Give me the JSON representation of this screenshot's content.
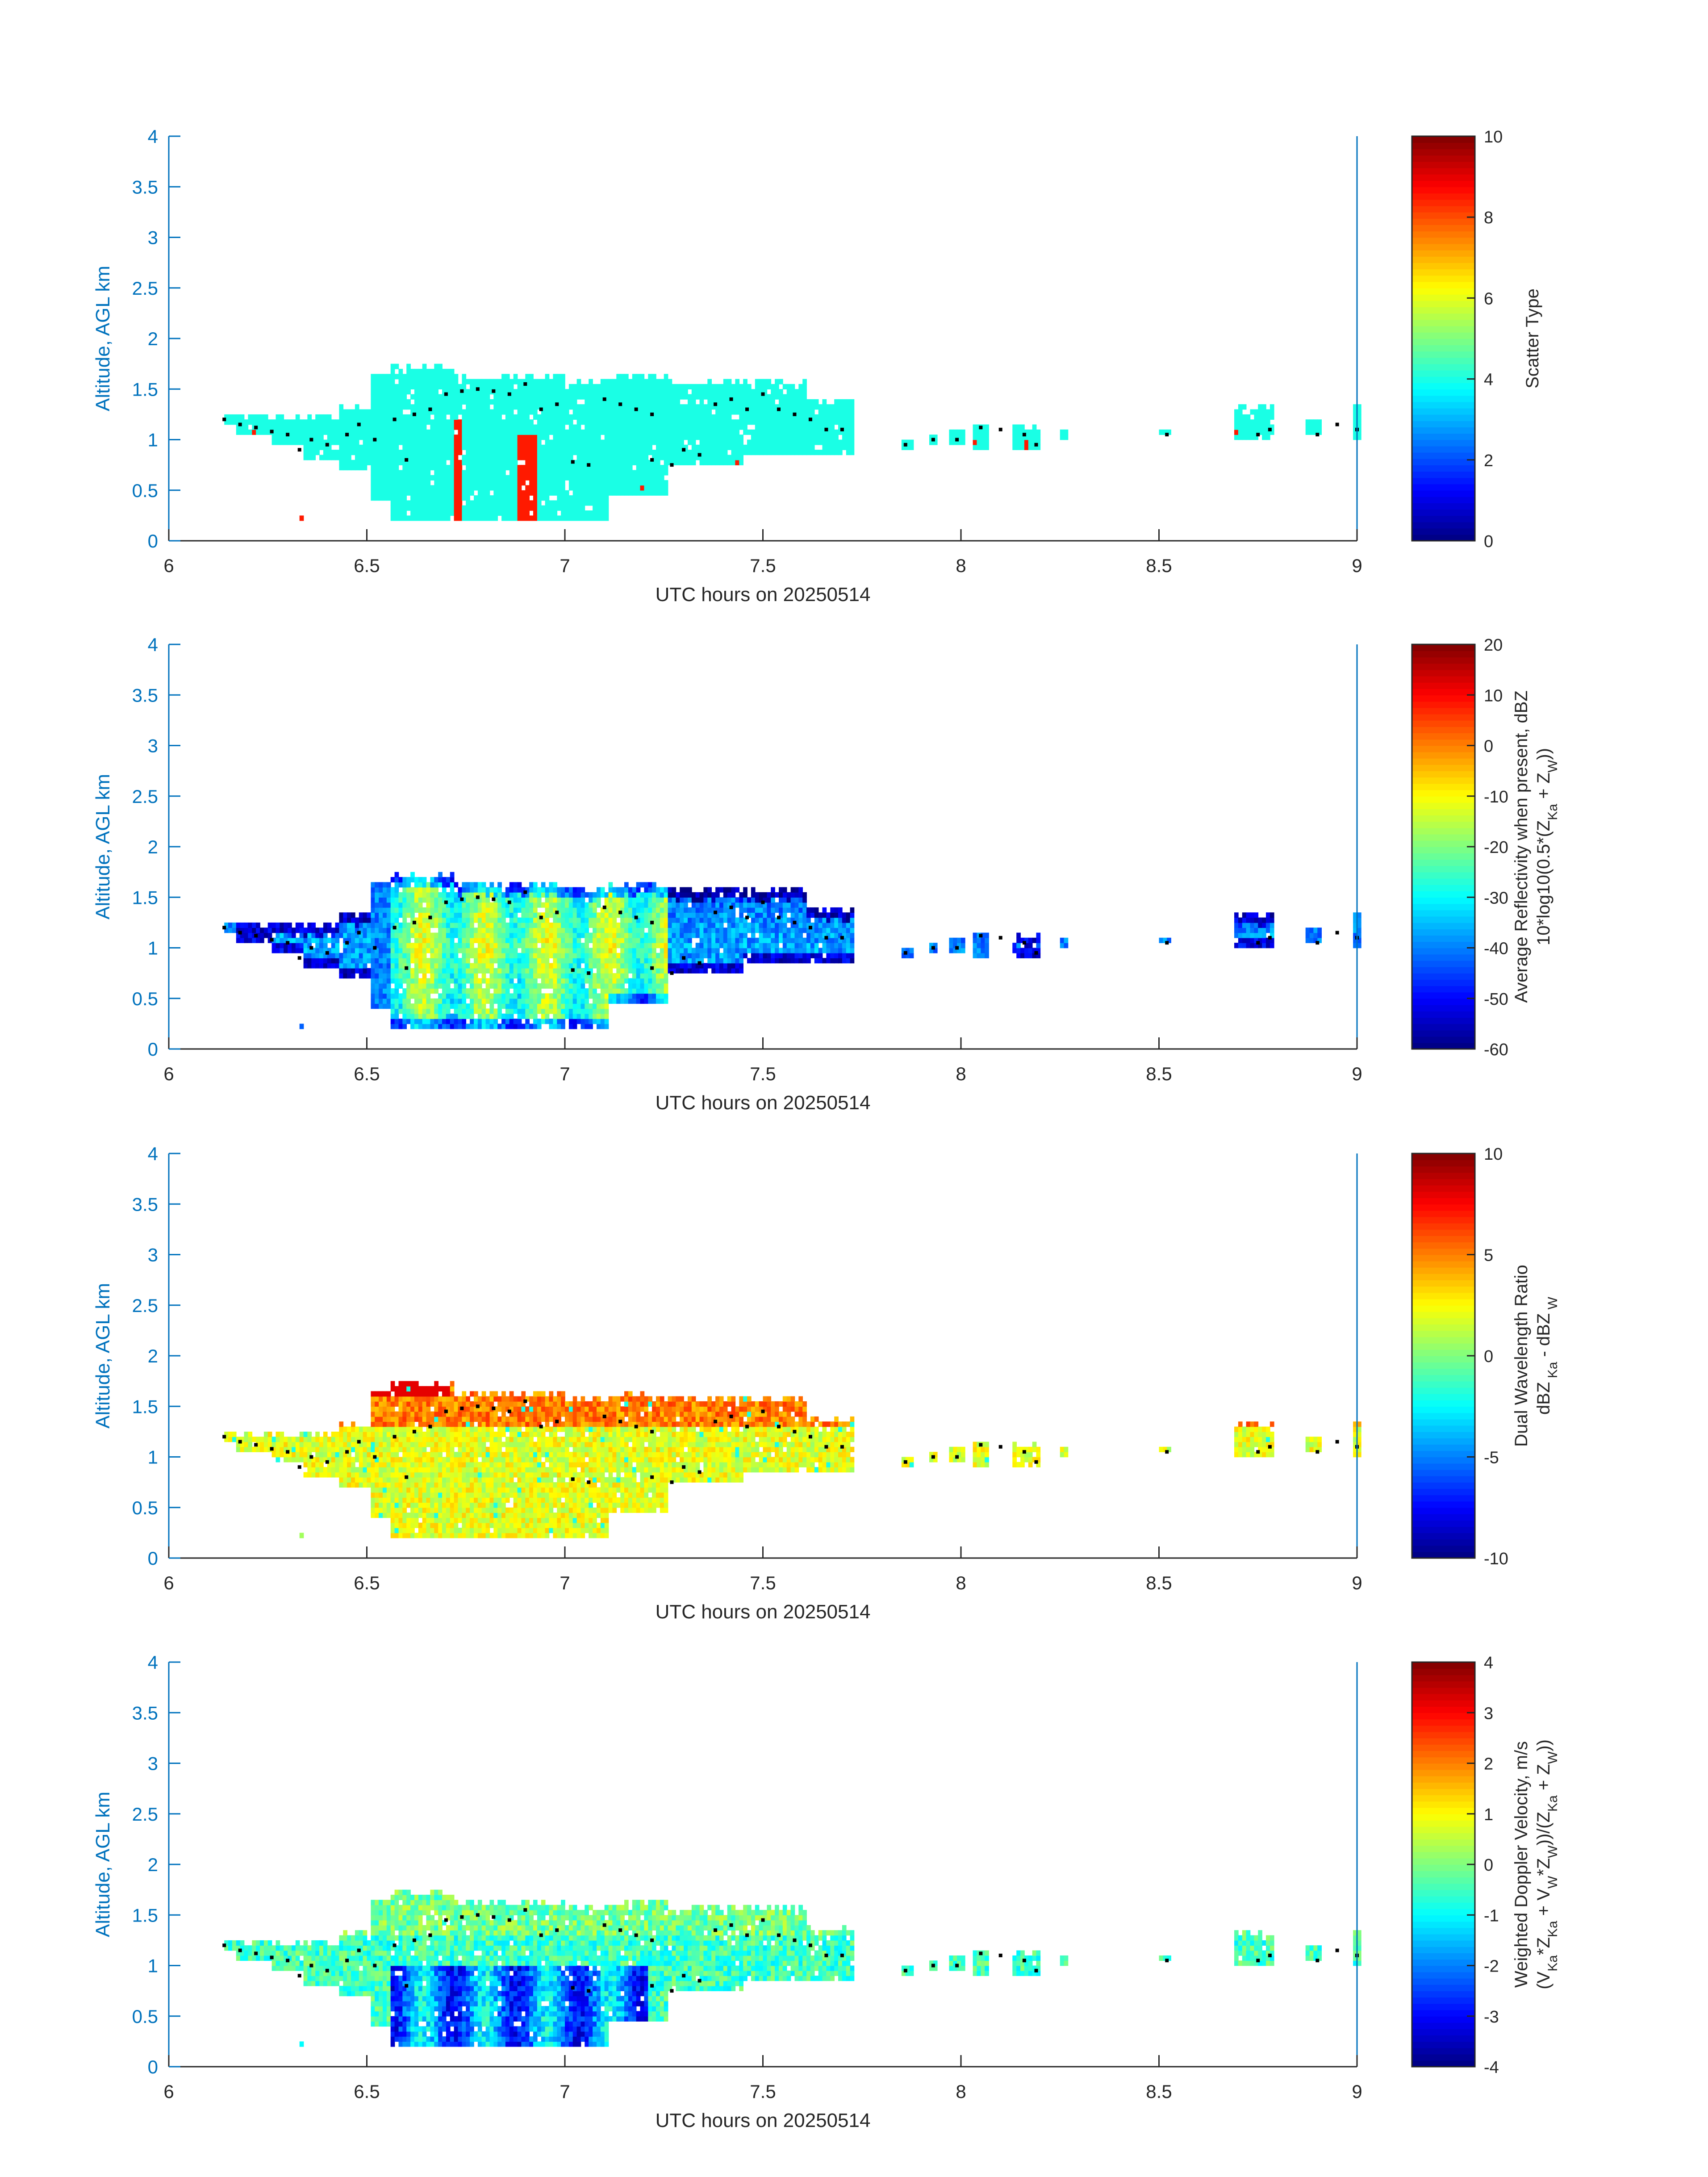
{
  "shared": {
    "xlabel": "UTC hours on 20250514",
    "ylabel": "Altitude, AGL km",
    "xlim": [
      6,
      9
    ],
    "ylim": [
      0,
      4
    ],
    "xticks": [
      "6",
      "6.5",
      "7",
      "7.5",
      "8",
      "8.5",
      "9"
    ],
    "yticks": [
      "0",
      "0.5",
      "1",
      "1.5",
      "2",
      "2.5",
      "3",
      "3.5",
      "4"
    ],
    "axis_color": "#0072BD",
    "colormap": "jet"
  },
  "chart_data": [
    {
      "type": "heatmap",
      "field": "scatter_type",
      "colorbar_label": [
        [
          {
            "t": "Scatter Type"
          }
        ]
      ],
      "clim": [
        0,
        10
      ],
      "cticks": [
        "0",
        "2",
        "4",
        "6",
        "8",
        "10"
      ],
      "base_value": 4,
      "spread": 0,
      "special": [
        {
          "t": [
            6.72,
            6.73
          ],
          "z": [
            0.2,
            1.2
          ],
          "value": 8.5
        },
        {
          "t": [
            6.88,
            6.92
          ],
          "z": [
            0.2,
            1.05
          ],
          "value": 8.5
        },
        {
          "t": [
            6.21,
            6.21
          ],
          "z": [
            1.05,
            1.1
          ],
          "value": 8.5
        },
        {
          "t": [
            6.33,
            6.33
          ],
          "z": [
            0.2,
            0.25
          ],
          "value": 8.5
        },
        {
          "t": [
            7.19,
            7.19
          ],
          "z": [
            0.5,
            0.55
          ],
          "value": 8.5
        },
        {
          "t": [
            7.43,
            7.43
          ],
          "z": [
            0.75,
            0.8
          ],
          "value": 8.5
        },
        {
          "t": [
            8.03,
            8.03
          ],
          "z": [
            0.95,
            1.0
          ],
          "value": 8.5
        },
        {
          "t": [
            8.16,
            8.16
          ],
          "z": [
            0.85,
            1.0
          ],
          "value": 8.5
        },
        {
          "t": [
            8.69,
            8.69
          ],
          "z": [
            1.05,
            1.1
          ],
          "value": 8.5
        }
      ]
    },
    {
      "type": "heatmap",
      "field": "average_reflectivity",
      "colorbar_label": [
        [
          {
            "t": "Average Reflectivity when present, dBZ"
          }
        ],
        [
          {
            "t": "10*log10(0.5*(Z"
          },
          {
            "t": "Ka",
            "sub": true
          },
          {
            "t": " + Z"
          },
          {
            "t": "W",
            "sub": true
          },
          {
            "t": "))"
          }
        ]
      ],
      "clim": [
        -60,
        20
      ],
      "cticks": [
        "-60",
        "-50",
        "-40",
        "-30",
        "-20",
        "-10",
        "0",
        "10",
        "20"
      ],
      "base_value": -25,
      "spread": 22
    },
    {
      "type": "heatmap",
      "field": "dual_wavelength_ratio",
      "colorbar_label": [
        [
          {
            "t": "Dual Wavelength Ratio"
          }
        ],
        [
          {
            "t": "dBZ"
          },
          {
            "t": " Ka",
            "sub": true
          },
          {
            "t": " - dBZ"
          },
          {
            "t": " W",
            "sub": true
          }
        ]
      ],
      "clim": [
        -10,
        10
      ],
      "cticks": [
        "-10",
        "-5",
        "0",
        "5",
        "10"
      ],
      "base_value": 3,
      "spread": 3
    },
    {
      "type": "heatmap",
      "field": "weighted_doppler_velocity",
      "colorbar_label": [
        [
          {
            "t": "Weighted Doppler Velocity, m/s"
          }
        ],
        [
          {
            "t": "(V"
          },
          {
            "t": "Ka",
            "sub": true
          },
          {
            "t": "*Z"
          },
          {
            "t": "Ka",
            "sub": true
          },
          {
            "t": " + V"
          },
          {
            "t": "W",
            "sub": true
          },
          {
            "t": "*Z"
          },
          {
            "t": "W",
            "sub": true
          },
          {
            "t": "))/(Z"
          },
          {
            "t": "Ka",
            "sub": true
          },
          {
            "t": " + Z"
          },
          {
            "t": "W",
            "sub": true
          },
          {
            "t": "))"
          }
        ]
      ],
      "clim": [
        -4,
        4
      ],
      "cticks": [
        "-4",
        "-3",
        "-2",
        "-1",
        "0",
        "1",
        "2",
        "3",
        "4"
      ],
      "base_value": -0.8,
      "spread": 1.6
    }
  ],
  "cloud_envelope": [
    [
      6.14,
      6.16,
      1.15,
      1.25
    ],
    [
      6.17,
      6.25,
      1.05,
      1.25
    ],
    [
      6.26,
      6.33,
      0.95,
      1.25
    ],
    [
      6.33,
      6.33,
      0.2,
      0.25
    ],
    [
      6.34,
      6.42,
      0.8,
      1.25
    ],
    [
      6.43,
      6.5,
      0.7,
      1.35
    ],
    [
      6.51,
      6.55,
      0.4,
      1.65
    ],
    [
      6.56,
      6.71,
      0.2,
      1.75
    ],
    [
      6.72,
      6.99,
      0.2,
      1.65
    ],
    [
      7.0,
      7.1,
      0.2,
      1.6
    ],
    [
      7.11,
      7.25,
      0.45,
      1.65
    ],
    [
      7.26,
      7.44,
      0.75,
      1.6
    ],
    [
      7.45,
      7.6,
      0.85,
      1.6
    ],
    [
      7.61,
      7.72,
      0.85,
      1.4
    ],
    [
      7.85,
      7.87,
      0.9,
      1.0
    ],
    [
      7.92,
      7.93,
      0.95,
      1.05
    ],
    [
      7.97,
      8.0,
      0.95,
      1.1
    ],
    [
      8.03,
      8.06,
      0.9,
      1.15
    ],
    [
      8.13,
      8.19,
      0.9,
      1.15
    ],
    [
      8.25,
      8.26,
      1.0,
      1.1
    ],
    [
      8.5,
      8.52,
      1.05,
      1.1
    ],
    [
      8.69,
      8.78,
      1.0,
      1.35
    ],
    [
      8.87,
      8.9,
      1.05,
      1.2
    ],
    [
      8.99,
      9.0,
      1.0,
      1.35
    ]
  ],
  "melting_layer_dots": [
    [
      6.14,
      1.2
    ],
    [
      6.18,
      1.15
    ],
    [
      6.22,
      1.12
    ],
    [
      6.26,
      1.08
    ],
    [
      6.3,
      1.05
    ],
    [
      6.33,
      0.9
    ],
    [
      6.36,
      1.0
    ],
    [
      6.4,
      0.95
    ],
    [
      6.45,
      1.05
    ],
    [
      6.48,
      1.15
    ],
    [
      6.52,
      1.0
    ],
    [
      6.57,
      1.2
    ],
    [
      6.6,
      0.8
    ],
    [
      6.62,
      1.25
    ],
    [
      6.66,
      1.3
    ],
    [
      6.7,
      1.45
    ],
    [
      6.74,
      1.48
    ],
    [
      6.78,
      1.5
    ],
    [
      6.82,
      1.48
    ],
    [
      6.86,
      1.45
    ],
    [
      6.9,
      1.55
    ],
    [
      6.94,
      1.3
    ],
    [
      6.98,
      1.35
    ],
    [
      7.02,
      0.78
    ],
    [
      7.06,
      0.75
    ],
    [
      7.1,
      1.4
    ],
    [
      7.14,
      1.35
    ],
    [
      7.18,
      1.3
    ],
    [
      7.22,
      1.25
    ],
    [
      7.22,
      0.8
    ],
    [
      7.27,
      0.75
    ],
    [
      7.3,
      0.9
    ],
    [
      7.34,
      0.85
    ],
    [
      7.38,
      1.35
    ],
    [
      7.42,
      1.4
    ],
    [
      7.46,
      1.3
    ],
    [
      7.5,
      1.45
    ],
    [
      7.54,
      1.3
    ],
    [
      7.58,
      1.25
    ],
    [
      7.62,
      1.2
    ],
    [
      7.66,
      1.1
    ],
    [
      7.7,
      1.1
    ],
    [
      7.86,
      0.95
    ],
    [
      7.93,
      1.0
    ],
    [
      7.99,
      1.0
    ],
    [
      8.05,
      1.12
    ],
    [
      8.1,
      1.1
    ],
    [
      8.16,
      1.05
    ],
    [
      8.19,
      0.95
    ],
    [
      8.52,
      1.05
    ],
    [
      8.75,
      1.05
    ],
    [
      8.78,
      1.1
    ],
    [
      8.9,
      1.05
    ],
    [
      8.95,
      1.15
    ],
    [
      9.0,
      1.1
    ]
  ]
}
